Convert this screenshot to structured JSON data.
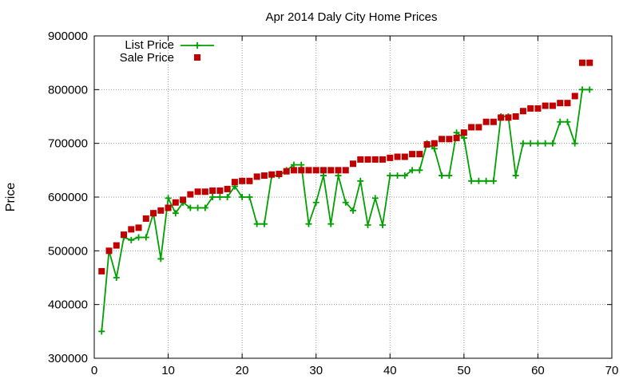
{
  "chart_data": {
    "type": "line",
    "title": "Apr 2014 Daly City Home Prices",
    "xlabel": "",
    "ylabel": "Price",
    "xlim": [
      0,
      70
    ],
    "ylim": [
      300000,
      900000
    ],
    "x_ticks": [
      0,
      10,
      20,
      30,
      40,
      50,
      60,
      70
    ],
    "y_ticks": [
      300000,
      400000,
      500000,
      600000,
      700000,
      800000,
      900000
    ],
    "grid": true,
    "legend_position": "top-left",
    "series": [
      {
        "name": "List Price",
        "style": "line-with-plus-markers",
        "color": "#00a000",
        "x": [
          1,
          2,
          3,
          4,
          5,
          6,
          7,
          8,
          9,
          10,
          11,
          12,
          13,
          14,
          15,
          16,
          17,
          18,
          19,
          20,
          21,
          22,
          23,
          24,
          25,
          26,
          27,
          28,
          29,
          30,
          31,
          32,
          33,
          34,
          35,
          36,
          37,
          38,
          39,
          40,
          41,
          42,
          43,
          44,
          45,
          46,
          47,
          48,
          49,
          50,
          51,
          52,
          53,
          54,
          55,
          56,
          57,
          58,
          59,
          60,
          61,
          62,
          63,
          64,
          65,
          66,
          67
        ],
        "values": [
          350000,
          500000,
          450000,
          525000,
          520000,
          525000,
          525000,
          570000,
          485000,
          598000,
          570000,
          590000,
          580000,
          580000,
          580000,
          600000,
          600000,
          600000,
          620000,
          600000,
          600000,
          550000,
          550000,
          640000,
          640000,
          650000,
          660000,
          660000,
          550000,
          590000,
          640000,
          550000,
          640000,
          590000,
          575000,
          630000,
          548000,
          598000,
          548000,
          640000,
          640000,
          640000,
          650000,
          650000,
          700000,
          690000,
          640000,
          640000,
          720000,
          710000,
          630000,
          630000,
          630000,
          630000,
          750000,
          750000,
          640000,
          700000,
          700000,
          700000,
          700000,
          700000,
          740000,
          740000,
          700000,
          800000,
          800000
        ]
      },
      {
        "name": "Sale Price",
        "style": "square-markers",
        "color": "#c00000",
        "x": [
          1,
          2,
          3,
          4,
          5,
          6,
          7,
          8,
          9,
          10,
          11,
          12,
          13,
          14,
          15,
          16,
          17,
          18,
          19,
          20,
          21,
          22,
          23,
          24,
          25,
          26,
          27,
          28,
          29,
          30,
          31,
          32,
          33,
          34,
          35,
          36,
          37,
          38,
          39,
          40,
          41,
          42,
          43,
          44,
          45,
          46,
          47,
          48,
          49,
          50,
          51,
          52,
          53,
          54,
          55,
          56,
          57,
          58,
          59,
          60,
          61,
          62,
          63,
          64,
          65,
          66,
          67
        ],
        "values": [
          462000,
          500000,
          510000,
          530000,
          540000,
          543000,
          560000,
          570000,
          575000,
          580000,
          590000,
          595000,
          605000,
          610000,
          610000,
          612000,
          612000,
          615000,
          628000,
          630000,
          630000,
          638000,
          640000,
          642000,
          643000,
          648000,
          650000,
          650000,
          650000,
          650000,
          650000,
          650000,
          650000,
          650000,
          662000,
          670000,
          670000,
          670000,
          670000,
          673000,
          675000,
          675000,
          680000,
          680000,
          698000,
          700000,
          708000,
          708000,
          710000,
          720000,
          730000,
          730000,
          740000,
          740000,
          748000,
          748000,
          750000,
          760000,
          765000,
          765000,
          770000,
          770000,
          775000,
          775000,
          788000,
          850000,
          850000
        ]
      }
    ]
  }
}
